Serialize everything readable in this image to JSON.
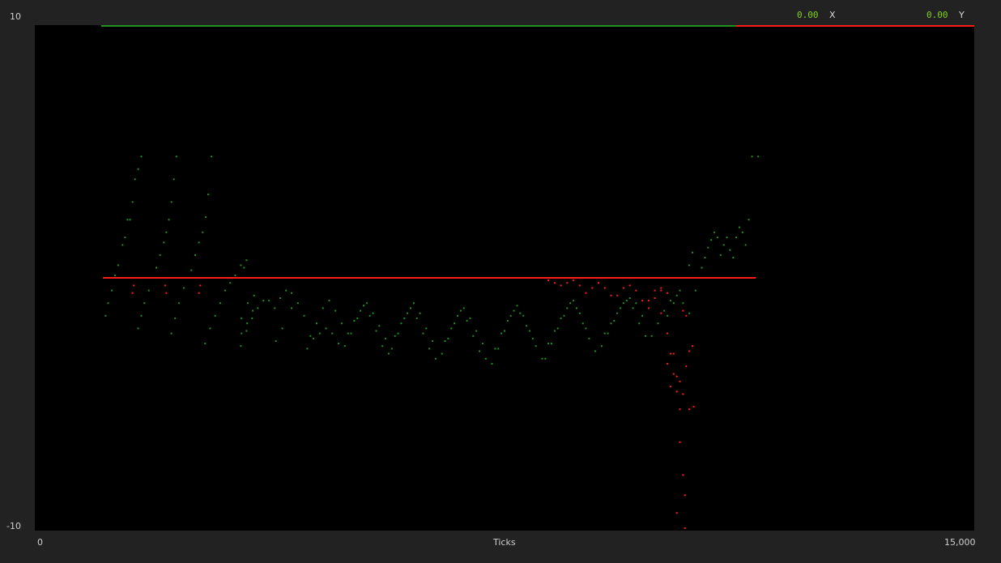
{
  "readouts": {
    "x_value": "0.00",
    "x_label": "X",
    "y_value": "0.00",
    "y_label": "Y"
  },
  "colors": {
    "background": "#222222",
    "plot_background": "#000000",
    "series_x": "#1f8f1f",
    "series_y": "#ff1a1a"
  },
  "chart_data": {
    "type": "scatter",
    "title": "",
    "xlabel": "Ticks",
    "ylabel": "",
    "xlim": [
      0,
      15000
    ],
    "ylim": [
      -10,
      10
    ],
    "x_tick_labels": [
      "0",
      "15,000"
    ],
    "y_tick_labels": [
      "10",
      "-10"
    ],
    "grid": false,
    "legend": "top-right",
    "series": [
      {
        "name": "X",
        "color": "#1f8f1f",
        "points": [
          [
            1130,
            -1.5
          ],
          [
            1170,
            -1.0
          ],
          [
            1230,
            -0.5
          ],
          [
            1280,
            0.1
          ],
          [
            1330,
            0.5
          ],
          [
            1400,
            1.3
          ],
          [
            1440,
            1.6
          ],
          [
            1480,
            2.3
          ],
          [
            1520,
            2.3
          ],
          [
            1560,
            3.0
          ],
          [
            1600,
            3.9
          ],
          [
            1650,
            4.3
          ],
          [
            1700,
            4.8
          ],
          [
            1650,
            -2.0
          ],
          [
            1700,
            -1.5
          ],
          [
            1750,
            -1.0
          ],
          [
            1820,
            -0.5
          ],
          [
            1880,
            0.0
          ],
          [
            1940,
            0.4
          ],
          [
            2000,
            0.9
          ],
          [
            2060,
            1.4
          ],
          [
            2100,
            1.8
          ],
          [
            2140,
            2.3
          ],
          [
            2180,
            3.0
          ],
          [
            2220,
            3.9
          ],
          [
            2260,
            4.8
          ],
          [
            2180,
            -2.2
          ],
          [
            2240,
            -1.6
          ],
          [
            2300,
            -1.0
          ],
          [
            2380,
            -0.4
          ],
          [
            2450,
            0.0
          ],
          [
            2500,
            0.3
          ],
          [
            2560,
            0.9
          ],
          [
            2620,
            1.4
          ],
          [
            2680,
            1.8
          ],
          [
            2730,
            2.4
          ],
          [
            2770,
            3.3
          ],
          [
            2820,
            4.8
          ],
          [
            2720,
            -2.6
          ],
          [
            2800,
            -2.0
          ],
          [
            2880,
            -1.5
          ],
          [
            2960,
            -1.0
          ],
          [
            3040,
            -0.5
          ],
          [
            3120,
            -0.2
          ],
          [
            3200,
            0.1
          ],
          [
            3290,
            0.5
          ],
          [
            3340,
            0.4
          ],
          [
            3380,
            0.7
          ],
          [
            3290,
            -2.7
          ],
          [
            3380,
            -2.1
          ],
          [
            3470,
            -1.6
          ],
          [
            3560,
            -1.2
          ],
          [
            3650,
            -0.9
          ],
          [
            3740,
            -0.9
          ],
          [
            3830,
            -1.2
          ],
          [
            3920,
            -0.8
          ],
          [
            4010,
            -0.5
          ],
          [
            4100,
            -0.6
          ],
          [
            3300,
            -2.2
          ],
          [
            3390,
            -1.8
          ],
          [
            3480,
            -1.3
          ],
          [
            3300,
            -1.6
          ],
          [
            3400,
            -1.0
          ],
          [
            3500,
            -0.7
          ],
          [
            3850,
            -2.5
          ],
          [
            3950,
            -2.0
          ],
          [
            4100,
            -1.2
          ],
          [
            4200,
            -1.0
          ],
          [
            4300,
            -1.5
          ],
          [
            4400,
            -2.3
          ],
          [
            4500,
            -1.8
          ],
          [
            4600,
            -1.2
          ],
          [
            4700,
            -0.9
          ],
          [
            4800,
            -1.3
          ],
          [
            4900,
            -1.8
          ],
          [
            4350,
            -2.8
          ],
          [
            4450,
            -2.4
          ],
          [
            4550,
            -2.2
          ],
          [
            4650,
            -2.0
          ],
          [
            4750,
            -2.2
          ],
          [
            4850,
            -2.6
          ],
          [
            4950,
            -2.7
          ],
          [
            5050,
            -2.2
          ],
          [
            5150,
            -1.6
          ],
          [
            5250,
            -1.1
          ],
          [
            5350,
            -1.5
          ],
          [
            5450,
            -2.1
          ],
          [
            5550,
            -2.7
          ],
          [
            5650,
            -3.0
          ],
          [
            5000,
            -2.2
          ],
          [
            5100,
            -1.7
          ],
          [
            5200,
            -1.3
          ],
          [
            5300,
            -1.0
          ],
          [
            5400,
            -1.4
          ],
          [
            5500,
            -1.9
          ],
          [
            5600,
            -2.4
          ],
          [
            5700,
            -2.8
          ],
          [
            5800,
            -2.2
          ],
          [
            5900,
            -1.6
          ],
          [
            6000,
            -1.2
          ],
          [
            6100,
            -1.6
          ],
          [
            6200,
            -2.2
          ],
          [
            6300,
            -2.8
          ],
          [
            6400,
            -3.2
          ],
          [
            5750,
            -2.3
          ],
          [
            5850,
            -1.8
          ],
          [
            5950,
            -1.4
          ],
          [
            6050,
            -1.0
          ],
          [
            6150,
            -1.4
          ],
          [
            6250,
            -2.0
          ],
          [
            6350,
            -2.5
          ],
          [
            6500,
            -3.0
          ],
          [
            6600,
            -2.4
          ],
          [
            6700,
            -1.8
          ],
          [
            6800,
            -1.3
          ],
          [
            6900,
            -1.7
          ],
          [
            7000,
            -2.3
          ],
          [
            7100,
            -2.9
          ],
          [
            7200,
            -3.2
          ],
          [
            6550,
            -2.5
          ],
          [
            6650,
            -2.0
          ],
          [
            6750,
            -1.5
          ],
          [
            6850,
            -1.2
          ],
          [
            6950,
            -1.6
          ],
          [
            7050,
            -2.1
          ],
          [
            7150,
            -2.6
          ],
          [
            7300,
            -3.4
          ],
          [
            7400,
            -2.8
          ],
          [
            7500,
            -2.1
          ],
          [
            7600,
            -1.5
          ],
          [
            7700,
            -1.1
          ],
          [
            7800,
            -1.5
          ],
          [
            7900,
            -2.1
          ],
          [
            8000,
            -2.7
          ],
          [
            8100,
            -3.2
          ],
          [
            7350,
            -2.8
          ],
          [
            7450,
            -2.2
          ],
          [
            7550,
            -1.7
          ],
          [
            7650,
            -1.3
          ],
          [
            7750,
            -1.4
          ],
          [
            7850,
            -1.9
          ],
          [
            7950,
            -2.4
          ],
          [
            8150,
            -3.2
          ],
          [
            8250,
            -2.6
          ],
          [
            8350,
            -2.0
          ],
          [
            8450,
            -1.5
          ],
          [
            8550,
            -1.0
          ],
          [
            8650,
            -1.2
          ],
          [
            8750,
            -1.8
          ],
          [
            8850,
            -2.4
          ],
          [
            8950,
            -2.9
          ],
          [
            8200,
            -2.6
          ],
          [
            8300,
            -2.1
          ],
          [
            8400,
            -1.6
          ],
          [
            8500,
            -1.2
          ],
          [
            8600,
            -0.9
          ],
          [
            8700,
            -1.4
          ],
          [
            8800,
            -2.0
          ],
          [
            9050,
            -2.7
          ],
          [
            9150,
            -2.2
          ],
          [
            9250,
            -1.7
          ],
          [
            9350,
            -1.2
          ],
          [
            9450,
            -0.9
          ],
          [
            9550,
            -1.2
          ],
          [
            9650,
            -1.8
          ],
          [
            9750,
            -2.3
          ],
          [
            9100,
            -2.2
          ],
          [
            9200,
            -1.8
          ],
          [
            9300,
            -1.4
          ],
          [
            9400,
            -1.0
          ],
          [
            9500,
            -0.8
          ],
          [
            9600,
            -1.0
          ],
          [
            9700,
            -1.5
          ],
          [
            9850,
            -2.3
          ],
          [
            9950,
            -1.8
          ],
          [
            10050,
            -1.3
          ],
          [
            10150,
            -0.9
          ],
          [
            10250,
            -0.7
          ],
          [
            10350,
            -1.0
          ],
          [
            10450,
            -1.4
          ],
          [
            10100,
            -1.5
          ],
          [
            10200,
            -1.0
          ],
          [
            10300,
            -0.5
          ],
          [
            10400,
            0.0
          ],
          [
            10450,
            0.5
          ],
          [
            10500,
            1.0
          ],
          [
            10550,
            -0.5
          ],
          [
            10600,
            0.0
          ],
          [
            10650,
            0.4
          ],
          [
            10700,
            0.8
          ],
          [
            10750,
            1.2
          ],
          [
            10800,
            1.5
          ],
          [
            10850,
            1.8
          ],
          [
            10900,
            1.6
          ],
          [
            10950,
            0.9
          ],
          [
            11000,
            1.3
          ],
          [
            11050,
            1.6
          ],
          [
            11100,
            1.1
          ],
          [
            11150,
            0.8
          ],
          [
            11200,
            1.6
          ],
          [
            11250,
            2.0
          ],
          [
            11300,
            1.8
          ],
          [
            11350,
            1.3
          ],
          [
            11400,
            2.3
          ],
          [
            11450,
            4.8
          ],
          [
            11550,
            4.8
          ]
        ]
      },
      {
        "name": "Y",
        "color": "#ff1a1a",
        "points": [
          [
            1100,
            0.0
          ],
          [
            1500,
            0.0
          ],
          [
            2000,
            0.0
          ],
          [
            2500,
            0.0
          ],
          [
            3000,
            0.0
          ],
          [
            3500,
            0.0
          ],
          [
            4000,
            0.0
          ],
          [
            4500,
            0.0
          ],
          [
            5000,
            0.0
          ],
          [
            5500,
            0.0
          ],
          [
            6000,
            0.0
          ],
          [
            6500,
            0.0
          ],
          [
            7000,
            0.0
          ],
          [
            7500,
            0.0
          ],
          [
            8000,
            0.0
          ],
          [
            8500,
            0.0
          ],
          [
            9000,
            0.0
          ],
          [
            9500,
            0.0
          ],
          [
            10000,
            0.0
          ],
          [
            10500,
            0.0
          ],
          [
            11000,
            0.0
          ],
          [
            11500,
            0.0
          ],
          [
            1560,
            -0.6
          ],
          [
            1580,
            -0.3
          ],
          [
            2080,
            -0.3
          ],
          [
            2100,
            -0.6
          ],
          [
            2620,
            -0.6
          ],
          [
            2640,
            -0.3
          ],
          [
            8200,
            -0.1
          ],
          [
            8300,
            -0.2
          ],
          [
            8400,
            -0.3
          ],
          [
            8500,
            -0.2
          ],
          [
            8600,
            -0.1
          ],
          [
            8700,
            -0.3
          ],
          [
            8800,
            -0.6
          ],
          [
            8900,
            -0.4
          ],
          [
            9000,
            -0.2
          ],
          [
            9100,
            -0.4
          ],
          [
            9200,
            -0.7
          ],
          [
            9300,
            -0.7
          ],
          [
            9400,
            -0.4
          ],
          [
            9500,
            -0.3
          ],
          [
            9600,
            -0.5
          ],
          [
            9700,
            -0.9
          ],
          [
            9800,
            -1.2
          ],
          [
            9900,
            -0.8
          ],
          [
            10000,
            -0.5
          ],
          [
            9800,
            -0.9
          ],
          [
            9900,
            -0.5
          ],
          [
            10000,
            -0.4
          ],
          [
            10100,
            -0.6
          ],
          [
            10000,
            -1.4
          ],
          [
            10100,
            -2.2
          ],
          [
            10150,
            -3.0
          ],
          [
            10200,
            -3.8
          ],
          [
            10250,
            -4.5
          ],
          [
            10300,
            -5.2
          ],
          [
            10100,
            -3.4
          ],
          [
            10150,
            -4.3
          ],
          [
            10200,
            -3.0
          ],
          [
            10250,
            -3.9
          ],
          [
            10300,
            -4.1
          ],
          [
            10350,
            -4.6
          ],
          [
            10400,
            -3.5
          ],
          [
            10450,
            -2.9
          ],
          [
            10500,
            -2.7
          ],
          [
            10350,
            -1.3
          ],
          [
            10400,
            -1.5
          ],
          [
            10450,
            -5.2
          ],
          [
            10520,
            -5.1
          ],
          [
            10300,
            -6.5
          ],
          [
            10350,
            -7.8
          ],
          [
            10380,
            -8.6
          ],
          [
            10250,
            -9.3
          ],
          [
            10380,
            -9.9
          ]
        ]
      }
    ]
  }
}
